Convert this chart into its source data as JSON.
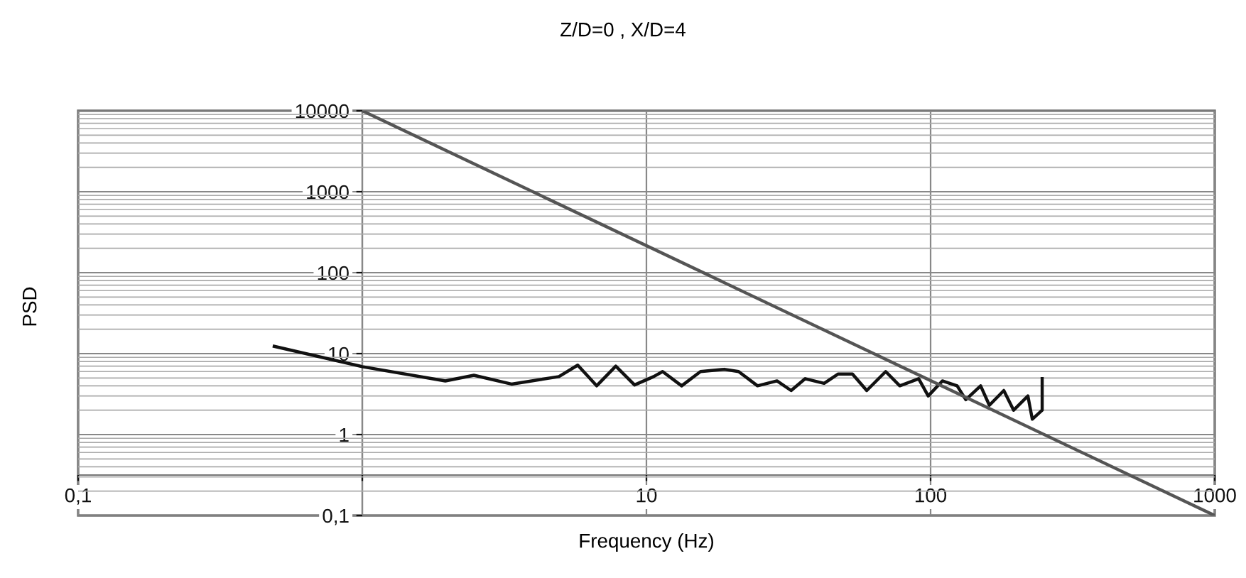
{
  "chart_data": {
    "type": "line",
    "title": "Z/D=0 , X/D=4",
    "xlabel": "Frequency (Hz)",
    "ylabel": "PSD",
    "log": "xy",
    "grid": true,
    "legend": false,
    "marker": "none",
    "line_style": "solid",
    "xlim": [
      0.1,
      1000
    ],
    "ylim": [
      0.1,
      10000
    ],
    "xticks": [
      {
        "value": 0.1,
        "label": "0,1"
      },
      {
        "value": 1,
        "label": null
      },
      10,
      100,
      1000
    ],
    "yticks": [
      {
        "value": 0.1,
        "label": "0,1"
      },
      1,
      10,
      100,
      1000,
      10000
    ],
    "series": [
      {
        "color": "#111111",
        "x": [
          0.49,
          1.0,
          1.96,
          2.47,
          3.35,
          4.92,
          5.73,
          6.68,
          7.8,
          9.08,
          10.6,
          11.4,
          13.3,
          15.5,
          18.8,
          21.1,
          24.6,
          28.8,
          32.3,
          36.2,
          42.2,
          47.3,
          53.1,
          59.6,
          69.5,
          77.9,
          90.8,
          98.1,
          110,
          124,
          133,
          150,
          161,
          181,
          196,
          220,
          228,
          247,
          247
        ],
        "values": [
          12.3,
          6.9,
          4.6,
          5.4,
          4.2,
          5.2,
          7.2,
          4.0,
          7.0,
          4.1,
          5.2,
          6.0,
          4.0,
          6.0,
          6.4,
          6.0,
          4.0,
          4.6,
          3.5,
          4.9,
          4.3,
          5.6,
          5.6,
          3.5,
          6.0,
          4.0,
          4.9,
          3.0,
          4.6,
          4.0,
          2.7,
          4.0,
          2.3,
          3.5,
          2.0,
          3.0,
          1.55,
          2.0,
          4.9
        ]
      },
      {
        "color": "#555555",
        "x": [
          1,
          1000
        ],
        "values": [
          10000,
          0.1
        ]
      }
    ]
  }
}
